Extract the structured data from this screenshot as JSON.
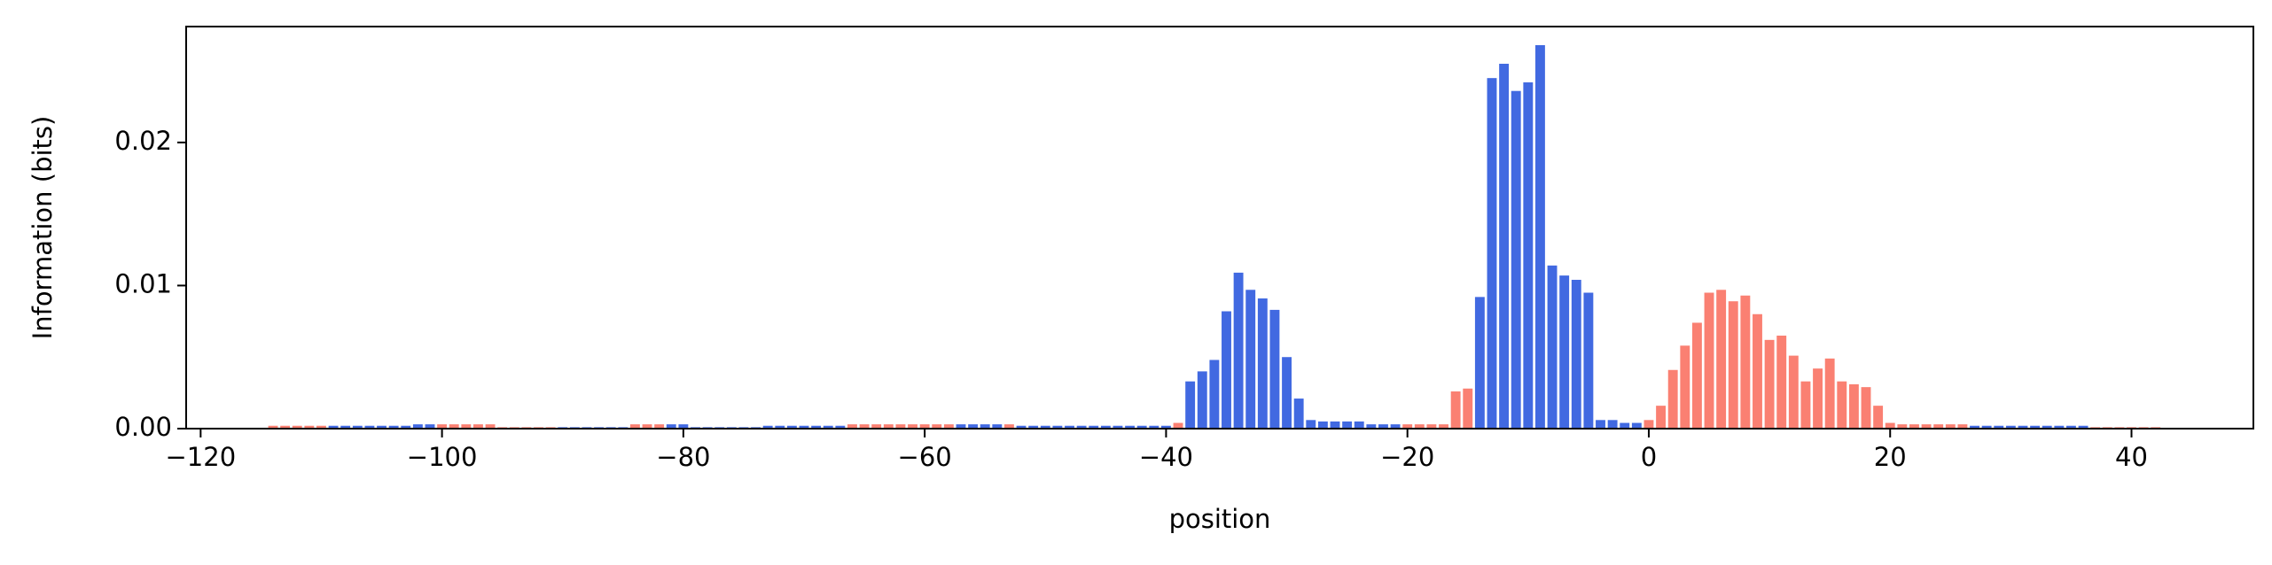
{
  "chart_data": {
    "type": "bar",
    "xlabel": "position",
    "ylabel": "Information (bits)",
    "xlim": [
      -121.2,
      50.1
    ],
    "ylim": [
      0,
      0.0281
    ],
    "xticks": [
      {
        "value": -120,
        "label": "−120"
      },
      {
        "value": -100,
        "label": "−100"
      },
      {
        "value": -80,
        "label": "−80"
      },
      {
        "value": -60,
        "label": "−60"
      },
      {
        "value": -40,
        "label": "−40"
      },
      {
        "value": -20,
        "label": "−20"
      },
      0,
      20,
      40
    ],
    "yticks": [
      {
        "value": 0,
        "label": "0.00"
      },
      {
        "value": 0.01,
        "label": "0.01"
      },
      {
        "value": 0.02,
        "label": "0.02"
      }
    ],
    "series": [
      {
        "color": "#4169e1",
        "x": [
          -109,
          -108,
          -107,
          -106,
          -105,
          -104,
          -103,
          -102,
          -101,
          -90,
          -89,
          -88,
          -87,
          -86,
          -85,
          -81,
          -80,
          -79,
          -78,
          -77,
          -76,
          -75,
          -74,
          -73,
          -72,
          -71,
          -70,
          -69,
          -68,
          -67,
          -57,
          -56,
          -55,
          -54,
          -52,
          -51,
          -50,
          -49,
          -48,
          -47,
          -46,
          -45,
          -44,
          -43,
          -42,
          -41,
          -40,
          -38,
          -37,
          -36,
          -35,
          -34,
          -33,
          -32,
          -31,
          -30,
          -29,
          -28,
          -27,
          -26,
          -25,
          -24,
          -23,
          -22,
          -21,
          -14,
          -13,
          -12,
          -11,
          -10,
          -9,
          -8,
          -7,
          -6,
          -5,
          -4,
          -3,
          -2,
          -1,
          27,
          28,
          29,
          30,
          31,
          32,
          33,
          34,
          35,
          36
        ],
        "values": [
          0.0002,
          0.0002,
          0.0002,
          0.0002,
          0.0002,
          0.0002,
          0.0002,
          0.0003,
          0.0003,
          0.0001,
          0.0001,
          0.0001,
          0.0001,
          0.0001,
          0.0001,
          0.0003,
          0.0003,
          0.0001,
          0.0001,
          0.0001,
          0.0001,
          0.0001,
          0.0001,
          0.0002,
          0.0002,
          0.0002,
          0.0002,
          0.0002,
          0.0002,
          0.0002,
          0.0003,
          0.0003,
          0.0003,
          0.0003,
          0.0002,
          0.0002,
          0.0002,
          0.0002,
          0.0002,
          0.0002,
          0.0002,
          0.0002,
          0.0002,
          0.0002,
          0.0002,
          0.0002,
          0.0002,
          0.0033,
          0.004,
          0.0048,
          0.0082,
          0.0109,
          0.0097,
          0.0091,
          0.0083,
          0.005,
          0.0021,
          0.0006,
          0.0005,
          0.0005,
          0.0005,
          0.0005,
          0.0003,
          0.0003,
          0.0003,
          0.0092,
          0.0245,
          0.0255,
          0.0236,
          0.0242,
          0.0268,
          0.0114,
          0.0107,
          0.0104,
          0.0095,
          0.0006,
          0.0006,
          0.0004,
          0.0004,
          0.0002,
          0.0002,
          0.0002,
          0.0002,
          0.0002,
          0.0002,
          0.0002,
          0.0002,
          0.0002,
          0.0002
        ]
      },
      {
        "color": "#fa8072",
        "x": [
          -114,
          -113,
          -112,
          -111,
          -110,
          -100,
          -99,
          -98,
          -97,
          -96,
          -95,
          -94,
          -93,
          -92,
          -91,
          -84,
          -83,
          -82,
          -66,
          -65,
          -64,
          -63,
          -62,
          -61,
          -60,
          -59,
          -58,
          -53,
          -39,
          -20,
          -19,
          -18,
          -17,
          -16,
          -15,
          0,
          1,
          2,
          3,
          4,
          5,
          6,
          7,
          8,
          9,
          10,
          11,
          12,
          13,
          14,
          15,
          16,
          17,
          18,
          19,
          20,
          21,
          22,
          23,
          24,
          25,
          26,
          37,
          38,
          39,
          40,
          41,
          42
        ],
        "values": [
          0.0002,
          0.0002,
          0.0002,
          0.0002,
          0.0002,
          0.0003,
          0.0003,
          0.0003,
          0.0003,
          0.0003,
          0.0001,
          0.0001,
          0.0001,
          0.0001,
          0.0001,
          0.0003,
          0.0003,
          0.0003,
          0.0003,
          0.0003,
          0.0003,
          0.0003,
          0.0003,
          0.0003,
          0.0003,
          0.0003,
          0.0003,
          0.0003,
          0.0004,
          0.0003,
          0.0003,
          0.0003,
          0.0003,
          0.0026,
          0.0028,
          0.0006,
          0.0016,
          0.0041,
          0.0058,
          0.0074,
          0.0095,
          0.0097,
          0.0089,
          0.0093,
          0.008,
          0.0062,
          0.0065,
          0.0051,
          0.0033,
          0.0042,
          0.0049,
          0.0033,
          0.0031,
          0.0029,
          0.0016,
          0.0004,
          0.0003,
          0.0003,
          0.0003,
          0.0003,
          0.0003,
          0.0003,
          0.0001,
          0.0001,
          0.0001,
          0.0001,
          0.0001,
          0.0001
        ]
      }
    ]
  }
}
